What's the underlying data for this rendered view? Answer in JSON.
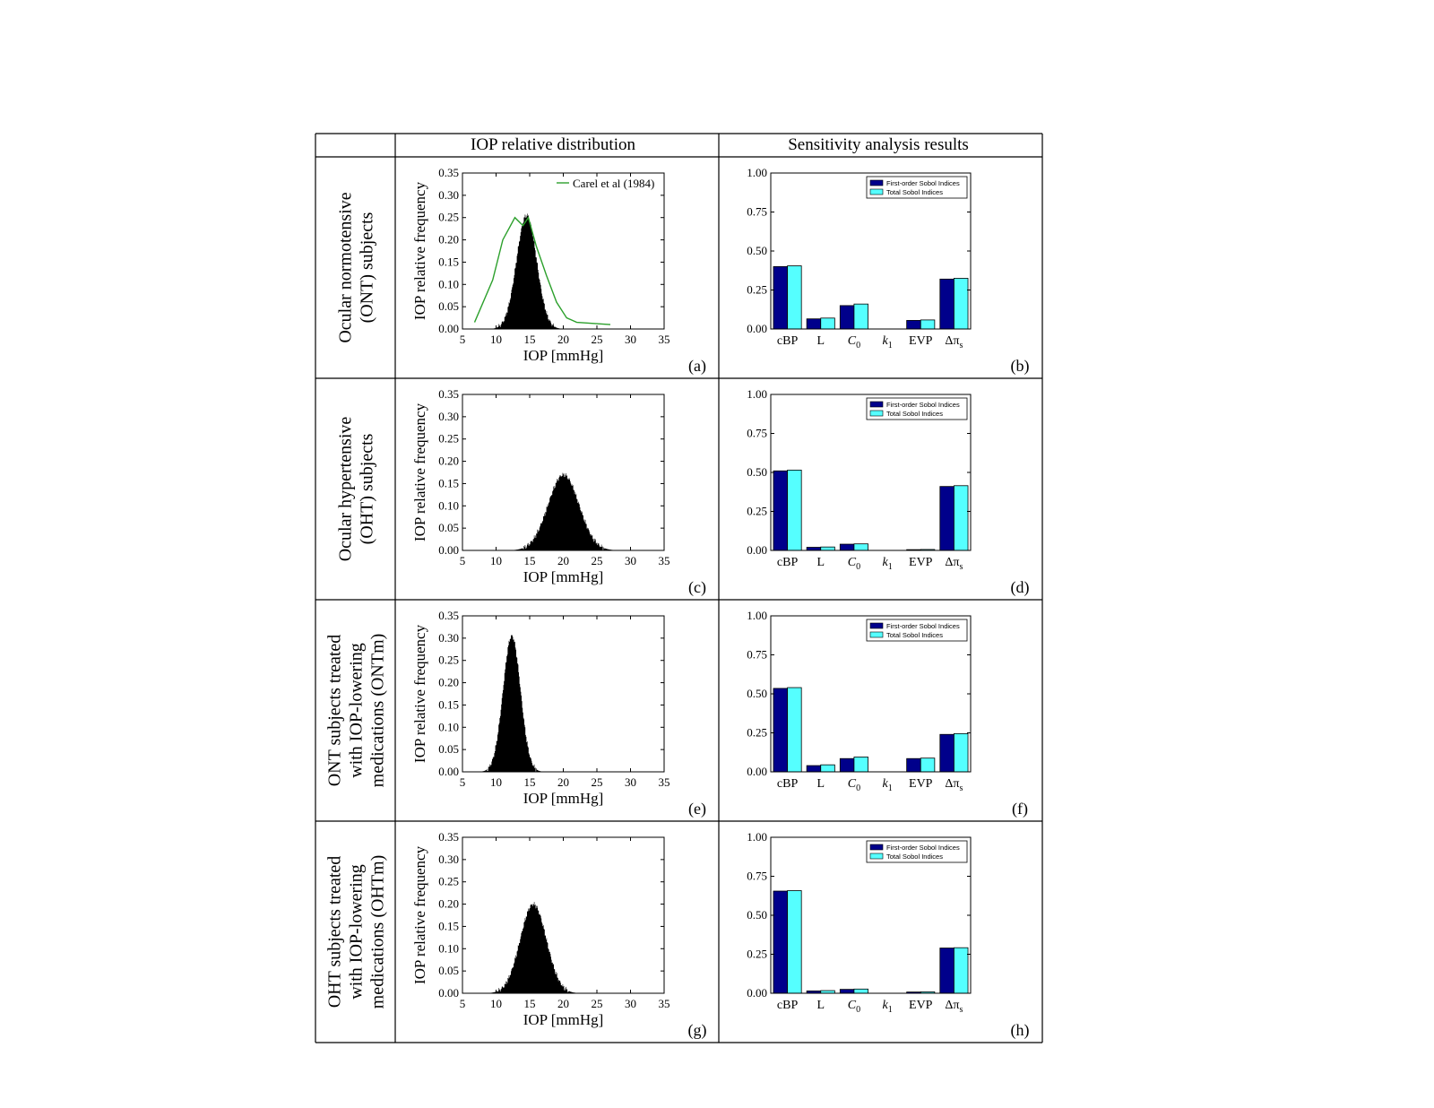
{
  "table": {
    "col_headers": [
      "IOP relative distribution",
      "Sensitivity analysis results"
    ],
    "row_labels": [
      [
        "Ocular normotensive",
        "(ONT) subjects"
      ],
      [
        "Ocular hypertensive",
        "(OHT) subjects"
      ],
      [
        "ONT subjects treated",
        "with IOP-lowering",
        "medications (ONTm)"
      ],
      [
        "OHT subjects treated",
        "with IOP-lowering",
        "medications (OHTm)"
      ]
    ]
  },
  "colors": {
    "histogram": "#000000",
    "carel_line": "#2ca02c",
    "first_order": "#00008b",
    "total": "#55ffff"
  },
  "chart_data": [
    {
      "panel": "(a)",
      "type": "area",
      "xlabel": "IOP [mmHg]",
      "ylabel": "IOP relative frequency",
      "xlim": [
        5,
        35
      ],
      "ylim": [
        0,
        0.35
      ],
      "xticks": [
        "5",
        "10",
        "15",
        "20",
        "25",
        "30",
        "35"
      ],
      "yticks": [
        "0.00",
        "0.05",
        "0.10",
        "0.15",
        "0.20",
        "0.25",
        "0.30",
        "0.35"
      ],
      "distribution": {
        "mean": 14.5,
        "sd": 1.5,
        "peak": 0.255
      },
      "series": [
        {
          "name": "Carel et al (1984)",
          "x": [
            6.8,
            9.5,
            11.0,
            12.8,
            14.0,
            14.8,
            16.0,
            17.5,
            19.0,
            20.5,
            22.0,
            27.0
          ],
          "y": [
            0.015,
            0.11,
            0.2,
            0.25,
            0.232,
            0.25,
            0.185,
            0.12,
            0.06,
            0.025,
            0.015,
            0.01
          ]
        }
      ],
      "legend": "top-right"
    },
    {
      "panel": "(b)",
      "type": "bar",
      "categories": [
        "cBP",
        "L",
        "C0",
        "k1",
        "EVP",
        "Δπs"
      ],
      "series": [
        {
          "name": "First-order Sobol Indices",
          "values": [
            0.4,
            0.065,
            0.15,
            0.0,
            0.055,
            0.32
          ]
        },
        {
          "name": "Total Sobol Indices",
          "values": [
            0.405,
            0.07,
            0.16,
            0.0,
            0.058,
            0.325
          ]
        }
      ],
      "ylim": [
        0,
        1.0
      ],
      "yticks": [
        "0.00",
        "0.25",
        "0.50",
        "0.75",
        "1.00"
      ],
      "legend": "top-right"
    },
    {
      "panel": "(c)",
      "type": "area",
      "xlabel": "IOP [mmHg]",
      "ylabel": "IOP relative frequency",
      "xlim": [
        5,
        35
      ],
      "ylim": [
        0,
        0.35
      ],
      "xticks": [
        "5",
        "10",
        "15",
        "20",
        "25",
        "30",
        "35"
      ],
      "yticks": [
        "0.00",
        "0.05",
        "0.10",
        "0.15",
        "0.20",
        "0.25",
        "0.30",
        "0.35"
      ],
      "distribution": {
        "mean": 20.0,
        "sd": 2.3,
        "peak": 0.17
      }
    },
    {
      "panel": "(d)",
      "type": "bar",
      "categories": [
        "cBP",
        "L",
        "C0",
        "k1",
        "EVP",
        "Δπs"
      ],
      "series": [
        {
          "name": "First-order Sobol Indices",
          "values": [
            0.51,
            0.02,
            0.04,
            0.0,
            0.005,
            0.41
          ]
        },
        {
          "name": "Total Sobol Indices",
          "values": [
            0.515,
            0.022,
            0.042,
            0.0,
            0.006,
            0.415
          ]
        }
      ],
      "ylim": [
        0,
        1.0
      ],
      "yticks": [
        "0.00",
        "0.25",
        "0.50",
        "0.75",
        "1.00"
      ],
      "legend": "top-right"
    },
    {
      "panel": "(e)",
      "type": "area",
      "xlabel": "IOP [mmHg]",
      "ylabel": "IOP relative frequency",
      "xlim": [
        5,
        35
      ],
      "ylim": [
        0,
        0.35
      ],
      "xticks": [
        "5",
        "10",
        "15",
        "20",
        "25",
        "30",
        "35"
      ],
      "yticks": [
        "0.00",
        "0.05",
        "0.10",
        "0.15",
        "0.20",
        "0.25",
        "0.30",
        "0.35"
      ],
      "distribution": {
        "mean": 12.3,
        "sd": 1.3,
        "peak": 0.305
      }
    },
    {
      "panel": "(f)",
      "type": "bar",
      "categories": [
        "cBP",
        "L",
        "C0",
        "k1",
        "EVP",
        "Δπs"
      ],
      "series": [
        {
          "name": "First-order Sobol Indices",
          "values": [
            0.535,
            0.04,
            0.085,
            0.0,
            0.085,
            0.24
          ]
        },
        {
          "name": "Total Sobol Indices",
          "values": [
            0.54,
            0.045,
            0.095,
            0.0,
            0.088,
            0.245
          ]
        }
      ],
      "ylim": [
        0,
        1.0
      ],
      "yticks": [
        "0.00",
        "0.25",
        "0.50",
        "0.75",
        "1.00"
      ],
      "legend": "top-right"
    },
    {
      "panel": "(g)",
      "type": "area",
      "xlabel": "IOP [mmHg]",
      "ylabel": "IOP relative frequency",
      "xlim": [
        5,
        35
      ],
      "ylim": [
        0,
        0.35
      ],
      "xticks": [
        "5",
        "10",
        "15",
        "20",
        "25",
        "30",
        "35"
      ],
      "yticks": [
        "0.00",
        "0.05",
        "0.10",
        "0.15",
        "0.20",
        "0.25",
        "0.30",
        "0.35"
      ],
      "distribution": {
        "mean": 15.5,
        "sd": 1.95,
        "peak": 0.2
      }
    },
    {
      "panel": "(h)",
      "type": "bar",
      "categories": [
        "cBP",
        "L",
        "C0",
        "k1",
        "EVP",
        "Δπs"
      ],
      "series": [
        {
          "name": "First-order Sobol Indices",
          "values": [
            0.655,
            0.015,
            0.025,
            0.0,
            0.008,
            0.29
          ]
        },
        {
          "name": "Total Sobol Indices",
          "values": [
            0.658,
            0.017,
            0.027,
            0.0,
            0.009,
            0.292
          ]
        }
      ],
      "ylim": [
        0,
        1.0
      ],
      "yticks": [
        "0.00",
        "0.25",
        "0.50",
        "0.75",
        "1.00"
      ],
      "legend": "top-right"
    }
  ]
}
